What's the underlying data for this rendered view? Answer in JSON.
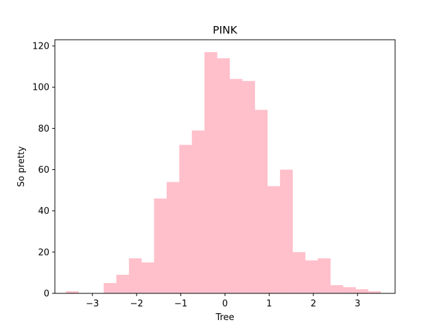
{
  "chart_data": {
    "type": "bar",
    "title": "PINK",
    "xlabel": "Tree",
    "ylabel": "So pretty",
    "bar_color": "#ffc0cb",
    "xlim": [
      -3.85,
      3.85
    ],
    "ylim": [
      0,
      123
    ],
    "xticks": [
      -3,
      -2,
      -1,
      0,
      1,
      2,
      3
    ],
    "xtick_labels": [
      "−3",
      "−2",
      "−1",
      "0",
      "1",
      "2",
      "3"
    ],
    "yticks": [
      0,
      20,
      40,
      60,
      80,
      100,
      120
    ],
    "ytick_labels": [
      "0",
      "20",
      "40",
      "60",
      "80",
      "100",
      "120"
    ],
    "bin_edges": [
      -3.6,
      -3.315,
      -3.03,
      -2.745,
      -2.46,
      -2.175,
      -1.89,
      -1.605,
      -1.32,
      -1.035,
      -0.75,
      -0.465,
      -0.18,
      0.105,
      0.39,
      0.675,
      0.96,
      1.245,
      1.53,
      1.815,
      2.1,
      2.385,
      2.67,
      2.955,
      3.24,
      3.525
    ],
    "counts": [
      1,
      0,
      0,
      5,
      9,
      17,
      15,
      46,
      54,
      72,
      79,
      117,
      114,
      104,
      103,
      89,
      52,
      60,
      20,
      16,
      17,
      4,
      3,
      2,
      1
    ],
    "grid": false
  }
}
